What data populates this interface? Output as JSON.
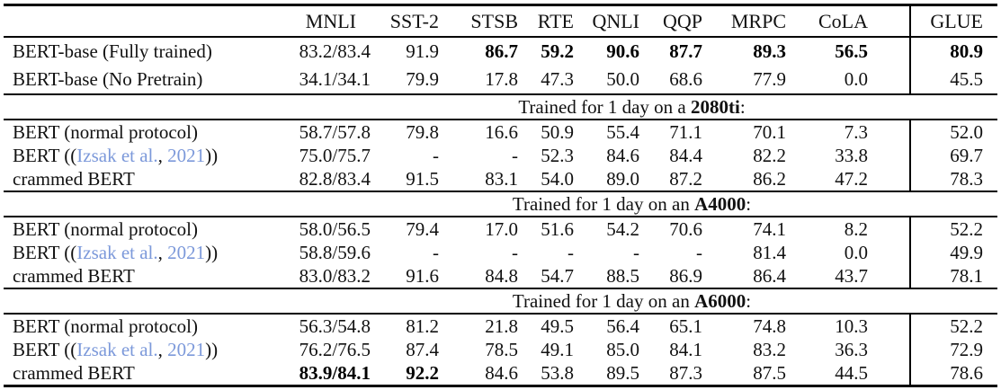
{
  "link_color": "#7c99da",
  "table": {
    "corner_label": "",
    "columns": [
      "MNLI",
      "SST-2",
      "STSB",
      "RTE",
      "QNLI",
      "QQP",
      "MRPC",
      "CoLA",
      "GLUE"
    ],
    "sections": [
      {
        "rows": [
          {
            "label_parts": [
              {
                "t": "BERT-base (Fully trained)"
              }
            ],
            "values": [
              "83.2/83.4",
              "91.9",
              "86.7",
              "59.2",
              "90.6",
              "87.7",
              "89.3",
              "56.5",
              "80.9"
            ],
            "bold_cols": [
              2,
              3,
              4,
              5,
              6,
              7,
              8
            ]
          },
          {
            "label_parts": [
              {
                "t": "BERT-base (No Pretrain)"
              }
            ],
            "values": [
              "34.1/34.1",
              "79.9",
              "17.8",
              "47.3",
              "50.0",
              "68.6",
              "77.9",
              "0.0",
              "45.5"
            ],
            "bold_cols": []
          }
        ]
      },
      {
        "divider_parts": [
          {
            "t": "Trained for 1 day on a "
          },
          {
            "t": "2080ti",
            "bold": true
          },
          {
            "t": ":"
          }
        ],
        "rows": [
          {
            "label_parts": [
              {
                "t": "BERT (normal protocol)"
              }
            ],
            "values": [
              "58.7/57.8",
              "79.8",
              "16.6",
              "50.9",
              "55.4",
              "71.1",
              "70.1",
              "7.3",
              "52.0"
            ],
            "bold_cols": []
          },
          {
            "label_parts": [
              {
                "t": "BERT (("
              },
              {
                "t": "Izsak et al.",
                "link": true
              },
              {
                "t": ", "
              },
              {
                "t": "2021",
                "link": true
              },
              {
                "t": "))"
              }
            ],
            "values": [
              "75.0/75.7",
              "-",
              "-",
              "52.3",
              "84.6",
              "84.4",
              "82.2",
              "33.8",
              "69.7"
            ],
            "bold_cols": []
          },
          {
            "label_parts": [
              {
                "t": "crammed BERT"
              }
            ],
            "values": [
              "82.8/83.4",
              "91.5",
              "83.1",
              "54.0",
              "89.0",
              "87.2",
              "86.2",
              "47.2",
              "78.3"
            ],
            "bold_cols": []
          }
        ]
      },
      {
        "divider_parts": [
          {
            "t": "Trained for 1 day on an "
          },
          {
            "t": "A4000",
            "bold": true
          },
          {
            "t": ":"
          }
        ],
        "rows": [
          {
            "label_parts": [
              {
                "t": "BERT (normal protocol)"
              }
            ],
            "values": [
              "58.0/56.5",
              "79.4",
              "17.0",
              "51.6",
              "54.2",
              "70.6",
              "74.1",
              "8.2",
              "52.2"
            ],
            "bold_cols": []
          },
          {
            "label_parts": [
              {
                "t": "BERT (("
              },
              {
                "t": "Izsak et al.",
                "link": true
              },
              {
                "t": ", "
              },
              {
                "t": "2021",
                "link": true
              },
              {
                "t": "))"
              }
            ],
            "values": [
              "58.8/59.6",
              "-",
              "-",
              "-",
              "-",
              "-",
              "81.4",
              "0.0",
              "49.9"
            ],
            "bold_cols": []
          },
          {
            "label_parts": [
              {
                "t": "crammed BERT"
              }
            ],
            "values": [
              "83.0/83.2",
              "91.6",
              "84.8",
              "54.7",
              "88.5",
              "86.9",
              "86.4",
              "43.7",
              "78.1"
            ],
            "bold_cols": []
          }
        ]
      },
      {
        "divider_parts": [
          {
            "t": "Trained for 1 day on an "
          },
          {
            "t": "A6000",
            "bold": true
          },
          {
            "t": ":"
          }
        ],
        "rows": [
          {
            "label_parts": [
              {
                "t": "BERT (normal protocol)"
              }
            ],
            "values": [
              "56.3/54.8",
              "81.2",
              "21.8",
              "49.5",
              "56.4",
              "65.1",
              "74.8",
              "10.3",
              "52.2"
            ],
            "bold_cols": []
          },
          {
            "label_parts": [
              {
                "t": "BERT (("
              },
              {
                "t": "Izsak et al.",
                "link": true
              },
              {
                "t": ", "
              },
              {
                "t": "2021",
                "link": true
              },
              {
                "t": "))"
              }
            ],
            "values": [
              "76.2/76.5",
              "87.4",
              "78.5",
              "49.1",
              "85.0",
              "84.1",
              "83.2",
              "36.3",
              "72.9"
            ],
            "bold_cols": []
          },
          {
            "label_parts": [
              {
                "t": "crammed BERT"
              }
            ],
            "values": [
              "83.9/84.1",
              "92.2",
              "84.6",
              "53.8",
              "89.5",
              "87.3",
              "87.5",
              "44.5",
              "78.6"
            ],
            "bold_cols": [
              0,
              1
            ]
          }
        ]
      }
    ]
  }
}
